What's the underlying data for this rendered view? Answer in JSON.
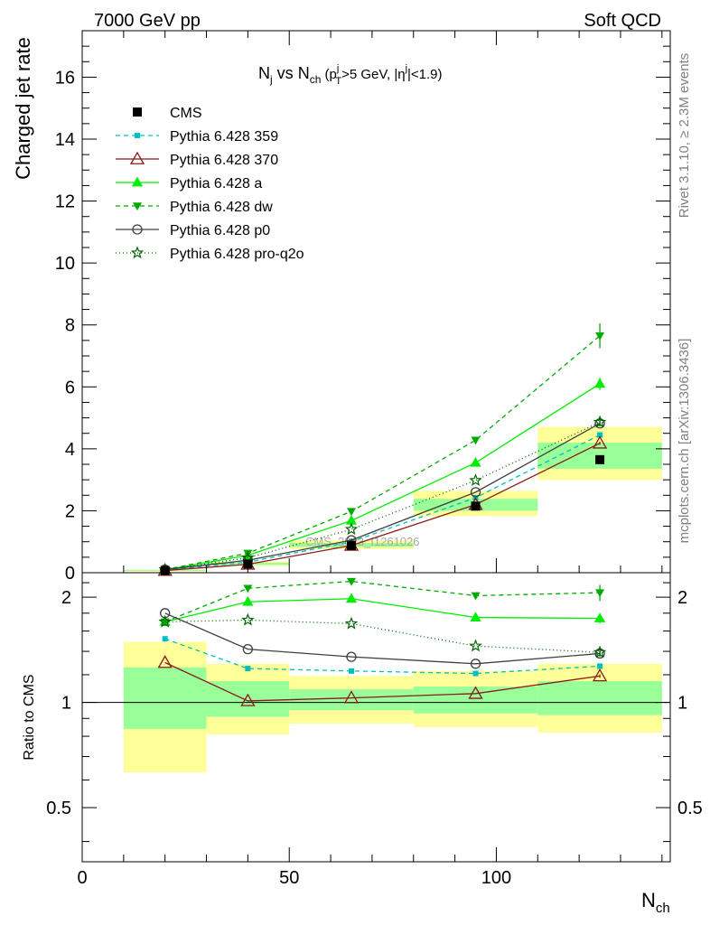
{
  "header": {
    "left_label": "7000 GeV pp",
    "right_label": "Soft QCD"
  },
  "side_labels": {
    "rivet": "Rivet 3.1.10, ≥ 2.3M events",
    "mcplots": "mcplots.cern.ch [arXiv:1306.3436]"
  },
  "watermark": "CMS_2013_I1261026",
  "chart_data": {
    "type": "line",
    "title": {
      "N": "N",
      "j_sub": "j",
      "vs": " vs ",
      "ch_sub": "ch",
      "p": " (p",
      "pt_sup": "j",
      "pt_sub": "T",
      "cut1": ">5 GeV, |η",
      "eta_sup": "j",
      "cut2": "|<1.9)"
    },
    "xlabel": "N",
    "xlabel_sub": "ch",
    "ylabel": "Charged jet rate",
    "ratio_ylabel": "Ratio to CMS",
    "xlim": [
      0,
      142
    ],
    "ylim": [
      0,
      17.5
    ],
    "ratio_ylim": [
      0.35,
      2.35
    ],
    "ratio_log": true,
    "x_ticks": [
      0,
      50,
      100
    ],
    "y_ticks": [
      0,
      2,
      4,
      6,
      8,
      10,
      12,
      14,
      16
    ],
    "ratio_ticks": [
      0.5,
      1,
      2
    ],
    "legend_position": "top-left",
    "bins": [
      [
        10,
        30
      ],
      [
        30,
        50
      ],
      [
        50,
        80
      ],
      [
        80,
        110
      ],
      [
        110,
        140
      ]
    ],
    "x": [
      20,
      40,
      65,
      95,
      125
    ],
    "data": {
      "name": "CMS",
      "values": [
        0.07,
        0.28,
        0.88,
        2.15,
        3.65
      ],
      "band_inner": [
        [
          0.84,
          1.26
        ],
        [
          0.91,
          1.15
        ],
        [
          0.95,
          1.09
        ],
        [
          0.93,
          1.11
        ],
        [
          0.92,
          1.15
        ]
      ],
      "band_outer": [
        [
          0.63,
          1.49
        ],
        [
          0.81,
          1.29
        ],
        [
          0.87,
          1.19
        ],
        [
          0.85,
          1.23
        ],
        [
          0.82,
          1.29
        ]
      ]
    },
    "series": [
      {
        "name": "Pythia 6.428 359",
        "color": "#00bfbf",
        "dash": "5,4",
        "marker": "square",
        "values": [
          0.08,
          0.34,
          1.0,
          2.42,
          4.45
        ],
        "ratio": [
          1.52,
          1.25,
          1.23,
          1.21,
          1.27
        ],
        "err": [
          0,
          0,
          0,
          0,
          0.05
        ]
      },
      {
        "name": "Pythia 6.428 370",
        "color": "#8b1a1a",
        "dash": "",
        "marker": "triangle-open",
        "values": [
          0.07,
          0.27,
          0.88,
          2.2,
          4.18
        ],
        "ratio": [
          1.3,
          1.01,
          1.03,
          1.06,
          1.19
        ],
        "err": [
          0,
          0,
          0,
          0,
          0.05
        ]
      },
      {
        "name": "Pythia 6.428 a",
        "color": "#00ee00",
        "dash": "",
        "marker": "triangle",
        "values": [
          0.09,
          0.56,
          1.68,
          3.55,
          6.1
        ],
        "ratio": [
          1.7,
          1.94,
          1.98,
          1.75,
          1.74
        ],
        "err": [
          0,
          0,
          0,
          0,
          0.2
        ]
      },
      {
        "name": "Pythia 6.428 dw",
        "color": "#00aa00",
        "dash": "5,4",
        "marker": "triangle-down",
        "values": [
          0.1,
          0.63,
          1.98,
          4.28,
          7.65
        ],
        "ratio": [
          1.7,
          2.12,
          2.22,
          2.02,
          2.06
        ],
        "err": [
          0,
          0,
          0,
          0,
          0.4
        ]
      },
      {
        "name": "Pythia 6.428 p0",
        "color": "#404040",
        "dash": "",
        "marker": "circle-open",
        "values": [
          0.1,
          0.4,
          1.05,
          2.6,
          4.82
        ],
        "ratio": [
          1.8,
          1.42,
          1.35,
          1.29,
          1.38
        ],
        "err": [
          0,
          0,
          0,
          0,
          0.1
        ]
      },
      {
        "name": "Pythia 6.428 pro-q2o",
        "color": "#006400",
        "dash": "1,3",
        "marker": "star",
        "values": [
          0.1,
          0.48,
          1.4,
          2.98,
          4.86
        ],
        "ratio": [
          1.7,
          1.72,
          1.68,
          1.45,
          1.39
        ],
        "err": [
          0,
          0,
          0,
          0,
          0.1
        ]
      }
    ]
  }
}
